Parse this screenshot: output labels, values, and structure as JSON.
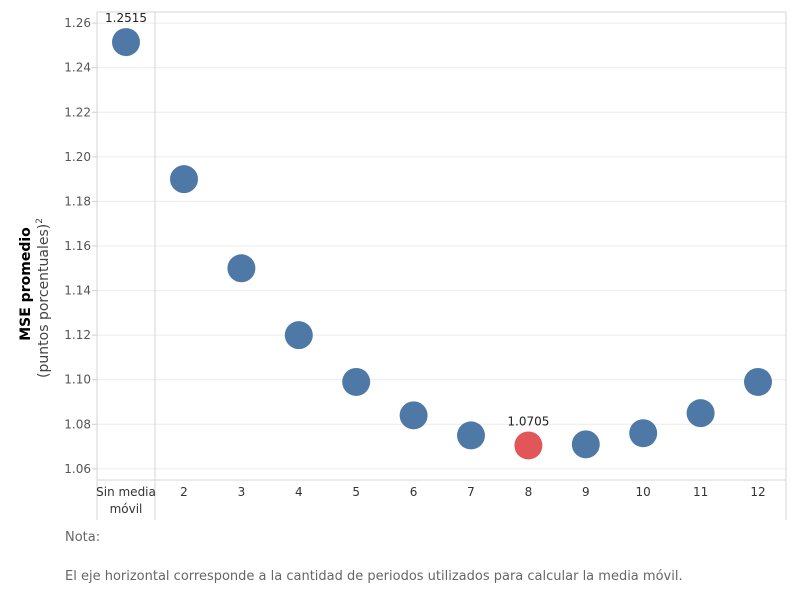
{
  "chart_data": {
    "type": "scatter",
    "title": "",
    "ylabel": "MSE promedio",
    "ylabel_sub": "(puntos porcentuales)",
    "ylabel_sup": "2",
    "ylim": [
      1.055,
      1.265
    ],
    "yticks": [
      "1.06",
      "1.08",
      "1.10",
      "1.12",
      "1.14",
      "1.16",
      "1.18",
      "1.20",
      "1.22",
      "1.24",
      "1.26"
    ],
    "grid": true,
    "categories": [
      "Sin media\nmóvil",
      "2",
      "3",
      "4",
      "5",
      "6",
      "7",
      "8",
      "9",
      "10",
      "11",
      "12"
    ],
    "values": [
      1.2515,
      1.19,
      1.15,
      1.12,
      1.099,
      1.084,
      1.075,
      1.0705,
      1.071,
      1.076,
      1.085,
      1.099
    ],
    "data_labels": [
      {
        "index": 0,
        "text": "1.2515"
      },
      {
        "index": 7,
        "text": "1.0705"
      }
    ],
    "highlight_index": 7,
    "colors": {
      "point": "#4e79a7",
      "highlight": "#e15759"
    }
  },
  "note": {
    "title": "Nota:",
    "text": "El eje horizontal corresponde a la cantidad de periodos utilizados para calcular la media móvil."
  }
}
